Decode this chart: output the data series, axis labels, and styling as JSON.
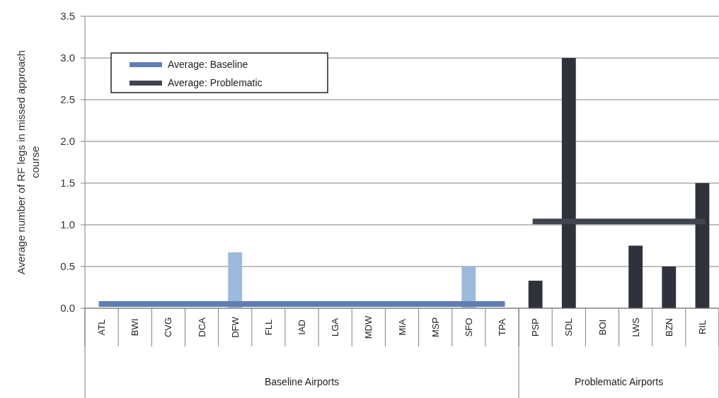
{
  "chart_data": {
    "type": "bar",
    "ylabel": "Average number of RF legs in missed approach course",
    "categories": [
      "ATL",
      "BWI",
      "CVG",
      "DCA",
      "DFW",
      "FLL",
      "IAD",
      "LGA",
      "MDW",
      "MIA",
      "MSP",
      "SFO",
      "TPA",
      "PSP",
      "SDL",
      "BOI",
      "LWS",
      "BZN",
      "RIL"
    ],
    "series": [
      {
        "colors": [
          "#9db9dc",
          "#9db9dc",
          "#9db9dc",
          "#9db9dc",
          "#9db9dc",
          "#9db9dc",
          "#9db9dc",
          "#9db9dc",
          "#9db9dc",
          "#9db9dc",
          "#9db9dc",
          "#9db9dc",
          "#9db9dc",
          "#2f323a",
          "#2f323a",
          "#2f323a",
          "#2f323a",
          "#2f323a",
          "#2f323a"
        ],
        "values": [
          0,
          0,
          0,
          0,
          0.67,
          0,
          0,
          0,
          0,
          0,
          0,
          0.5,
          0,
          0.33,
          3.0,
          0,
          0.75,
          0.5,
          1.5
        ]
      },
      {
        "type": "line",
        "name": "Average: Baseline",
        "color": "#5f7fb3",
        "values": [
          0.05,
          0.05,
          0.05,
          0.05,
          0.05,
          0.05,
          0.05,
          0.05,
          0.05,
          0.05,
          0.05,
          0.05,
          0.05,
          null,
          null,
          null,
          null,
          null,
          null
        ]
      },
      {
        "type": "line",
        "name": "Average: Problematic",
        "color": "#404550",
        "values": [
          null,
          null,
          null,
          null,
          null,
          null,
          null,
          null,
          null,
          null,
          null,
          null,
          null,
          1.04,
          1.04,
          1.04,
          1.04,
          1.04,
          1.04
        ]
      }
    ],
    "annotations": [
      "Baseline Airports",
      "Problematic Airports"
    ],
    "ylim": [
      0,
      3.5
    ],
    "yticks": [
      {
        "value": 0,
        "label": "0.0"
      },
      {
        "value": 0.5,
        "label": "0.5"
      },
      {
        "value": 1,
        "label": "1.0"
      },
      {
        "value": 1.5,
        "label": "1.5"
      },
      {
        "value": 2,
        "label": "2.0"
      },
      {
        "value": 2.5,
        "label": "2.5"
      },
      {
        "value": 3,
        "label": "3.0"
      },
      {
        "value": 3.5,
        "label": "3.5"
      }
    ],
    "grid": "y",
    "legend": "top left"
  }
}
